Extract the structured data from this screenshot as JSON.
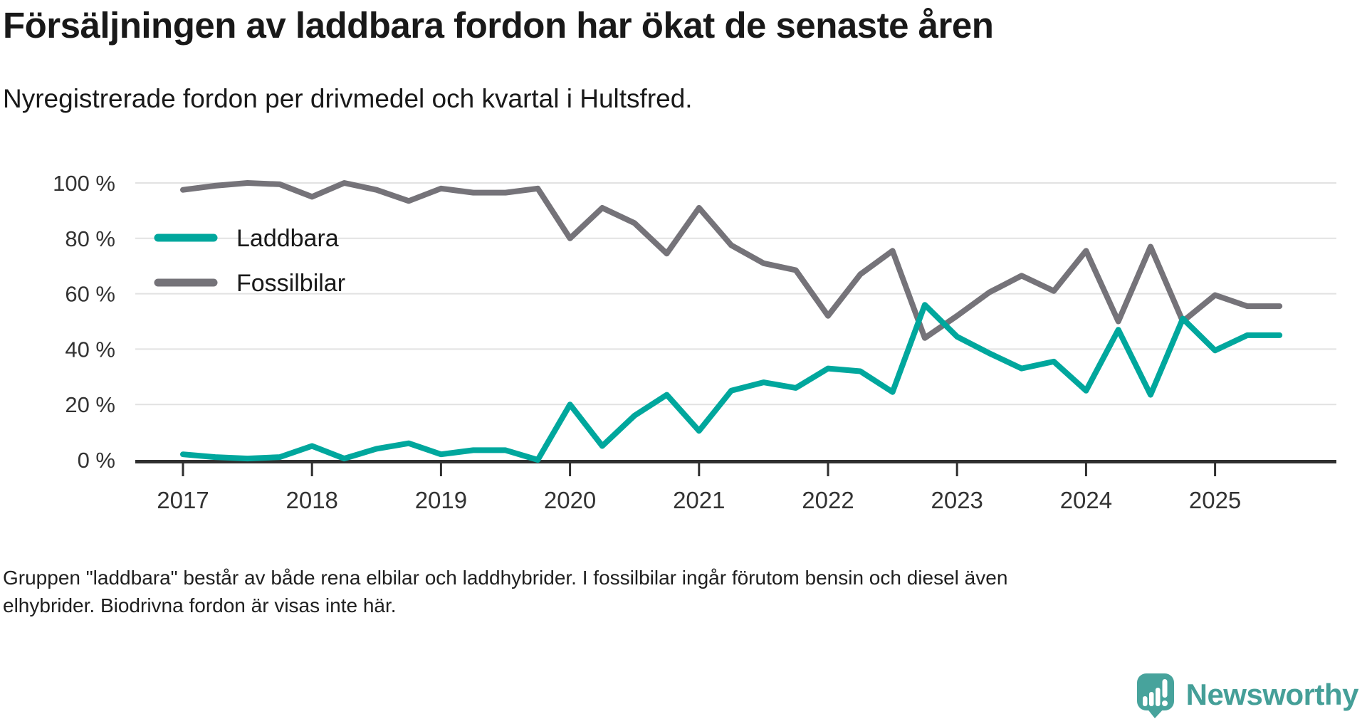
{
  "title": "Försäljningen av laddbara fordon har ökat de senaste åren",
  "subtitle": "Nyregistrerade fordon per drivmedel och kvartal i Hultsfred.",
  "footer": {
    "line1": "Gruppen \"laddbara\" består av både rena elbilar och laddhybrider. I fossilbilar ingår förutom bensin och diesel även",
    "line2": "elhybrider. Biodrivna fordon är visas inte här."
  },
  "logo": {
    "name": "Newsworthy",
    "icon": "speech-bubble-bar-chart-icon"
  },
  "colors": {
    "laddbara": "#00a79d",
    "fossilbilar": "#757379",
    "gridline": "#e2e2e2",
    "axis": "#2f2f2f",
    "tick_label": "#333333",
    "logo_teal": "#459f98"
  },
  "chart_data": {
    "type": "line",
    "title": "Försäljningen av laddbara fordon har ökat de senaste åren",
    "subtitle": "Nyregistrerade fordon per drivmedel och kvartal i Hultsfred.",
    "grid": "horizontal",
    "legend_position": "inside-top-left",
    "ylim": [
      0,
      100
    ],
    "yticks": [
      {
        "value": 100,
        "label": "100 %"
      },
      {
        "value": 80,
        "label": "80 %"
      },
      {
        "value": 60,
        "label": "60 %"
      },
      {
        "value": 40,
        "label": "40 %"
      },
      {
        "value": 20,
        "label": "20 %"
      },
      {
        "value": 0,
        "label": "0 %"
      }
    ],
    "xticks": [
      "2017",
      "2018",
      "2019",
      "2020",
      "2021",
      "2022",
      "2023",
      "2024",
      "2025"
    ],
    "x": [
      "2017 Q1",
      "2017 Q2",
      "2017 Q3",
      "2017 Q4",
      "2018 Q1",
      "2018 Q2",
      "2018 Q3",
      "2018 Q4",
      "2019 Q1",
      "2019 Q2",
      "2019 Q3",
      "2019 Q4",
      "2020 Q1",
      "2020 Q2",
      "2020 Q3",
      "2020 Q4",
      "2021 Q1",
      "2021 Q2",
      "2021 Q3",
      "2021 Q4",
      "2022 Q1",
      "2022 Q2",
      "2022 Q3",
      "2022 Q4",
      "2023 Q1",
      "2023 Q2",
      "2023 Q3",
      "2023 Q4",
      "2024 Q1",
      "2024 Q2",
      "2024 Q3",
      "2024 Q4",
      "2025 Q1",
      "2025 Q2",
      "2025 Q3"
    ],
    "series": [
      {
        "name": "Laddbara",
        "color": "#00a79d",
        "unit": "%",
        "values": [
          2,
          1,
          0.5,
          1,
          5,
          0.5,
          4,
          6,
          2,
          3.5,
          3.5,
          0,
          20,
          5,
          16,
          23.5,
          10.5,
          25,
          28,
          26,
          33,
          32,
          24.5,
          56,
          44.5,
          38.5,
          33,
          35.5,
          25,
          47,
          23.5,
          51,
          39.5,
          45,
          45
        ]
      },
      {
        "name": "Fossilbilar",
        "color": "#757379",
        "unit": "%",
        "values": [
          97.5,
          99,
          100,
          99.5,
          95,
          100,
          97.5,
          93.5,
          98,
          96.5,
          96.5,
          98,
          80,
          91,
          85.5,
          74.5,
          91,
          77.5,
          71,
          68.5,
          52,
          67,
          75.5,
          44,
          52,
          60.5,
          66.5,
          61,
          75.5,
          50,
          77,
          50,
          59.5,
          55.5,
          55.5
        ]
      }
    ]
  }
}
